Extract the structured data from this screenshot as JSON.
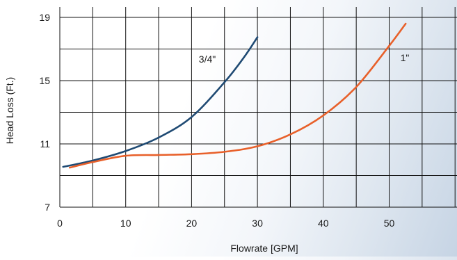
{
  "chart_data": {
    "type": "line",
    "xlabel": "Flowrate [GPM]",
    "ylabel": "Head Loss (Ft.)",
    "xlim": [
      0,
      62
    ],
    "ylim": [
      7,
      20
    ],
    "x_ticks": [
      0,
      10,
      20,
      30,
      40,
      50
    ],
    "y_ticks": [
      7,
      11,
      15,
      19
    ],
    "grid": true,
    "series": [
      {
        "name": "3/4\"",
        "color": "#1f4a73",
        "x": [
          0.5,
          5,
          10,
          15,
          20,
          25,
          28,
          30
        ],
        "y": [
          9.55,
          9.95,
          10.55,
          11.4,
          12.7,
          14.9,
          16.5,
          17.75
        ]
      },
      {
        "name": "1\"",
        "color": "#e8602a",
        "x": [
          1.5,
          5,
          10,
          15,
          20,
          25,
          30,
          35,
          40,
          45,
          50,
          52.5
        ],
        "y": [
          9.5,
          9.85,
          10.25,
          10.3,
          10.35,
          10.5,
          10.85,
          11.6,
          12.8,
          14.6,
          17.2,
          18.6
        ]
      }
    ]
  }
}
